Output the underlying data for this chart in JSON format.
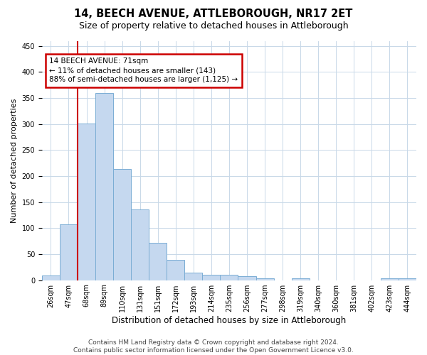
{
  "title": "14, BEECH AVENUE, ATTLEBOROUGH, NR17 2ET",
  "subtitle": "Size of property relative to detached houses in Attleborough",
  "xlabel": "Distribution of detached houses by size in Attleborough",
  "ylabel": "Number of detached properties",
  "bar_labels": [
    "26sqm",
    "47sqm",
    "68sqm",
    "89sqm",
    "110sqm",
    "131sqm",
    "151sqm",
    "172sqm",
    "193sqm",
    "214sqm",
    "235sqm",
    "256sqm",
    "277sqm",
    "298sqm",
    "319sqm",
    "340sqm",
    "360sqm",
    "381sqm",
    "402sqm",
    "423sqm",
    "444sqm"
  ],
  "bar_values": [
    9,
    107,
    301,
    360,
    213,
    136,
    72,
    39,
    14,
    11,
    10,
    7,
    4,
    0,
    3,
    0,
    0,
    0,
    0,
    4,
    3
  ],
  "bar_color": "#c5d8ef",
  "bar_edgecolor": "#7aadd4",
  "ylim": [
    0,
    460
  ],
  "yticks": [
    0,
    50,
    100,
    150,
    200,
    250,
    300,
    350,
    400,
    450
  ],
  "vline_color": "#cc0000",
  "vline_x_index": 2,
  "annotation_text": "14 BEECH AVENUE: 71sqm\n← 11% of detached houses are smaller (143)\n88% of semi-detached houses are larger (1,125) →",
  "annotation_box_color": "#cc0000",
  "footer_text": "Contains HM Land Registry data © Crown copyright and database right 2024.\nContains public sector information licensed under the Open Government Licence v3.0.",
  "background_color": "#ffffff",
  "grid_color": "#c8d8e8",
  "title_fontsize": 10.5,
  "subtitle_fontsize": 9,
  "axis_label_fontsize": 8,
  "tick_fontsize": 7,
  "footer_fontsize": 6.5
}
